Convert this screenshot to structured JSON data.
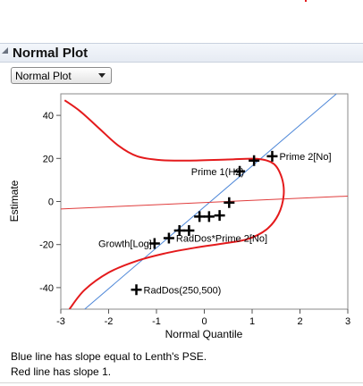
{
  "window": {
    "accent_color": "#e41a1c"
  },
  "panel": {
    "title": "Normal Plot",
    "select_value": "Normal Plot",
    "notes": [
      "Blue line has slope equal to Lenth's PSE.",
      "Red line has slope 1."
    ]
  },
  "chart_data": {
    "type": "scatter",
    "xlabel": "Normal Quantile",
    "ylabel": "Estimate",
    "xlim": [
      -3,
      3
    ],
    "ylim": [
      -50,
      50
    ],
    "xticks": [
      -3,
      -2,
      -1,
      0,
      1,
      2,
      3
    ],
    "yticks": [
      -40,
      -20,
      0,
      20,
      40
    ],
    "grid": false,
    "series": [
      {
        "points": [
          {
            "x": -1.04,
            "y": -19.5,
            "label": "Growth[Log]"
          },
          {
            "x": -0.74,
            "y": -17.0,
            "label": "RadDos*Prime 2[No]"
          },
          {
            "x": -1.42,
            "y": -41.0,
            "label": "RadDos(250,500)"
          },
          {
            "x": 1.42,
            "y": 21.0,
            "label": "Prime 2[No]"
          },
          {
            "x": 1.04,
            "y": 19.0,
            "label": ""
          },
          {
            "x": 0.74,
            "y": 14.0,
            "label": "Prime 1(H2)"
          },
          {
            "x": -0.52,
            "y": -13.5,
            "label": ""
          },
          {
            "x": -0.32,
            "y": -13.5,
            "label": ""
          },
          {
            "x": -0.1,
            "y": -7.0,
            "label": ""
          },
          {
            "x": 0.1,
            "y": -7.0,
            "label": ""
          },
          {
            "x": 0.32,
            "y": -6.5,
            "label": ""
          },
          {
            "x": 0.52,
            "y": -0.5,
            "label": ""
          }
        ]
      }
    ],
    "reference_lines": [
      {
        "description": "slope equal to Lenth's PSE",
        "color": "#4f88d8",
        "intercept": -2.5,
        "slope": 19.0
      },
      {
        "description": "slope 1",
        "color": "#e03c3c",
        "intercept": -0.5,
        "slope": 1.0
      }
    ],
    "curve": {
      "color": "#e41a1c",
      "points": [
        [
          -2.92,
          47
        ],
        [
          -2.6,
          42
        ],
        [
          -2.2,
          34
        ],
        [
          -1.8,
          26
        ],
        [
          -1.4,
          21
        ],
        [
          -0.9,
          19.2
        ],
        [
          -0.3,
          19
        ],
        [
          0.5,
          19.5
        ],
        [
          1.1,
          19.8
        ],
        [
          1.45,
          17.5
        ],
        [
          1.62,
          11
        ],
        [
          1.66,
          3
        ],
        [
          1.55,
          -6
        ],
        [
          1.3,
          -13
        ],
        [
          0.9,
          -17.5
        ],
        [
          0.4,
          -19.5
        ],
        [
          -0.2,
          -21.5
        ],
        [
          -0.8,
          -24
        ],
        [
          -1.4,
          -27.5
        ],
        [
          -2.0,
          -33
        ],
        [
          -2.5,
          -41
        ],
        [
          -2.82,
          -50
        ]
      ]
    }
  }
}
